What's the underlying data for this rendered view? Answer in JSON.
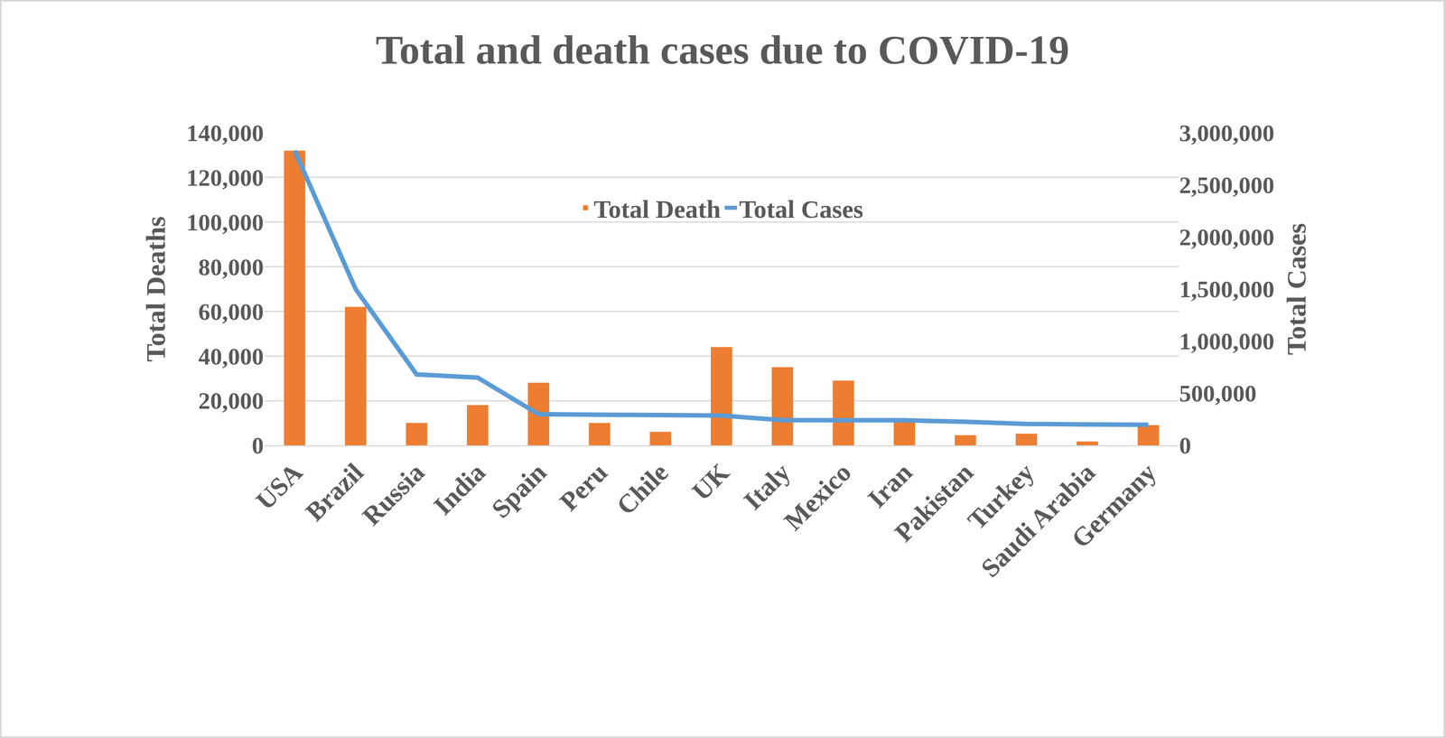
{
  "chart_data": {
    "type": "bar",
    "title": "Total and death cases due to COVID-19",
    "categories": [
      "USA",
      "Brazil",
      "Russia",
      "India",
      "Spain",
      "Peru",
      "Chile",
      "UK",
      "Italy",
      "Mexico",
      "Iran",
      "Pakistan",
      "Turkey",
      "Saudi Arabia",
      "Germany"
    ],
    "series": [
      {
        "name": "Total Death",
        "type": "bar",
        "color": "#ED7D31",
        "values": [
          132000,
          62000,
          10000,
          18000,
          28000,
          10000,
          6000,
          44000,
          35000,
          29000,
          11000,
          4500,
          5200,
          1700,
          9000
        ]
      },
      {
        "name": "Total Cases",
        "type": "line",
        "color": "#5B9BD5",
        "axis": "y2",
        "values": [
          2830000,
          1500000,
          680000,
          650000,
          298000,
          295000,
          290000,
          285000,
          241000,
          245000,
          240000,
          225000,
          205000,
          200000,
          197000
        ]
      }
    ],
    "ylabel": "Total Deaths",
    "y2label": "Total Cases",
    "ylim": [
      0,
      140000
    ],
    "yticks": [
      0,
      {
        "value": 20000,
        "label": "20,000"
      },
      {
        "value": 40000,
        "label": "40,000"
      },
      {
        "value": 60000,
        "label": "60,000"
      },
      {
        "value": 80000,
        "label": "80,000"
      },
      {
        "value": 100000,
        "label": "100,000"
      },
      {
        "value": 120000,
        "label": "120,000"
      },
      {
        "value": 140000,
        "label": "140,000"
      }
    ],
    "y2lim": [
      0,
      3000000
    ],
    "y2ticks": [
      0,
      {
        "value": 500000,
        "label": "500,000"
      },
      {
        "value": 1000000,
        "label": "1,000,000"
      },
      {
        "value": 1500000,
        "label": "1,500,000"
      },
      {
        "value": 2000000,
        "label": "2,000,000"
      },
      {
        "value": 2500000,
        "label": "2,500,000"
      },
      {
        "value": 3000000,
        "label": "3,000,000"
      }
    ],
    "grid": true,
    "legend": "top"
  }
}
